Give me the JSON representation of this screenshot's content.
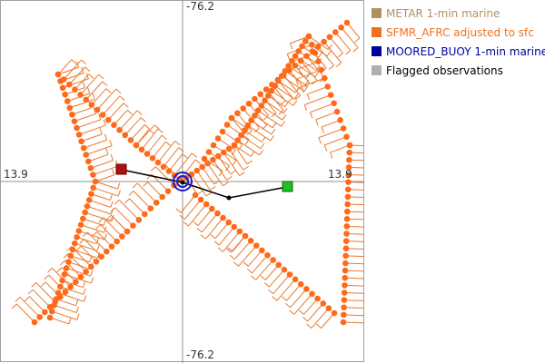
{
  "plot": {
    "axis_labels": {
      "top": "-76.2",
      "bottom": "-76.2",
      "left": "13.9",
      "right": "13.9"
    }
  },
  "legend": {
    "items": [
      {
        "label": "METAR 1-min marine",
        "color": "#b09060"
      },
      {
        "label": "SFMR_AFRC adjusted to sfc",
        "color": "#f07020"
      },
      {
        "label": "MOORED_BUOY 1-min marine",
        "color": "#0000a0"
      },
      {
        "label": "Flagged observations",
        "color": "#b0b0b0"
      }
    ]
  },
  "colors": {
    "sfmr_dot": "#ff6a1a",
    "sfmr_barb": "#e87a30",
    "buoy": "#1a1ad0",
    "track": "#000000",
    "start_marker": "#b01010",
    "end_marker": "#20c020",
    "axis": "#909090",
    "border": "#a0a0a0"
  }
}
